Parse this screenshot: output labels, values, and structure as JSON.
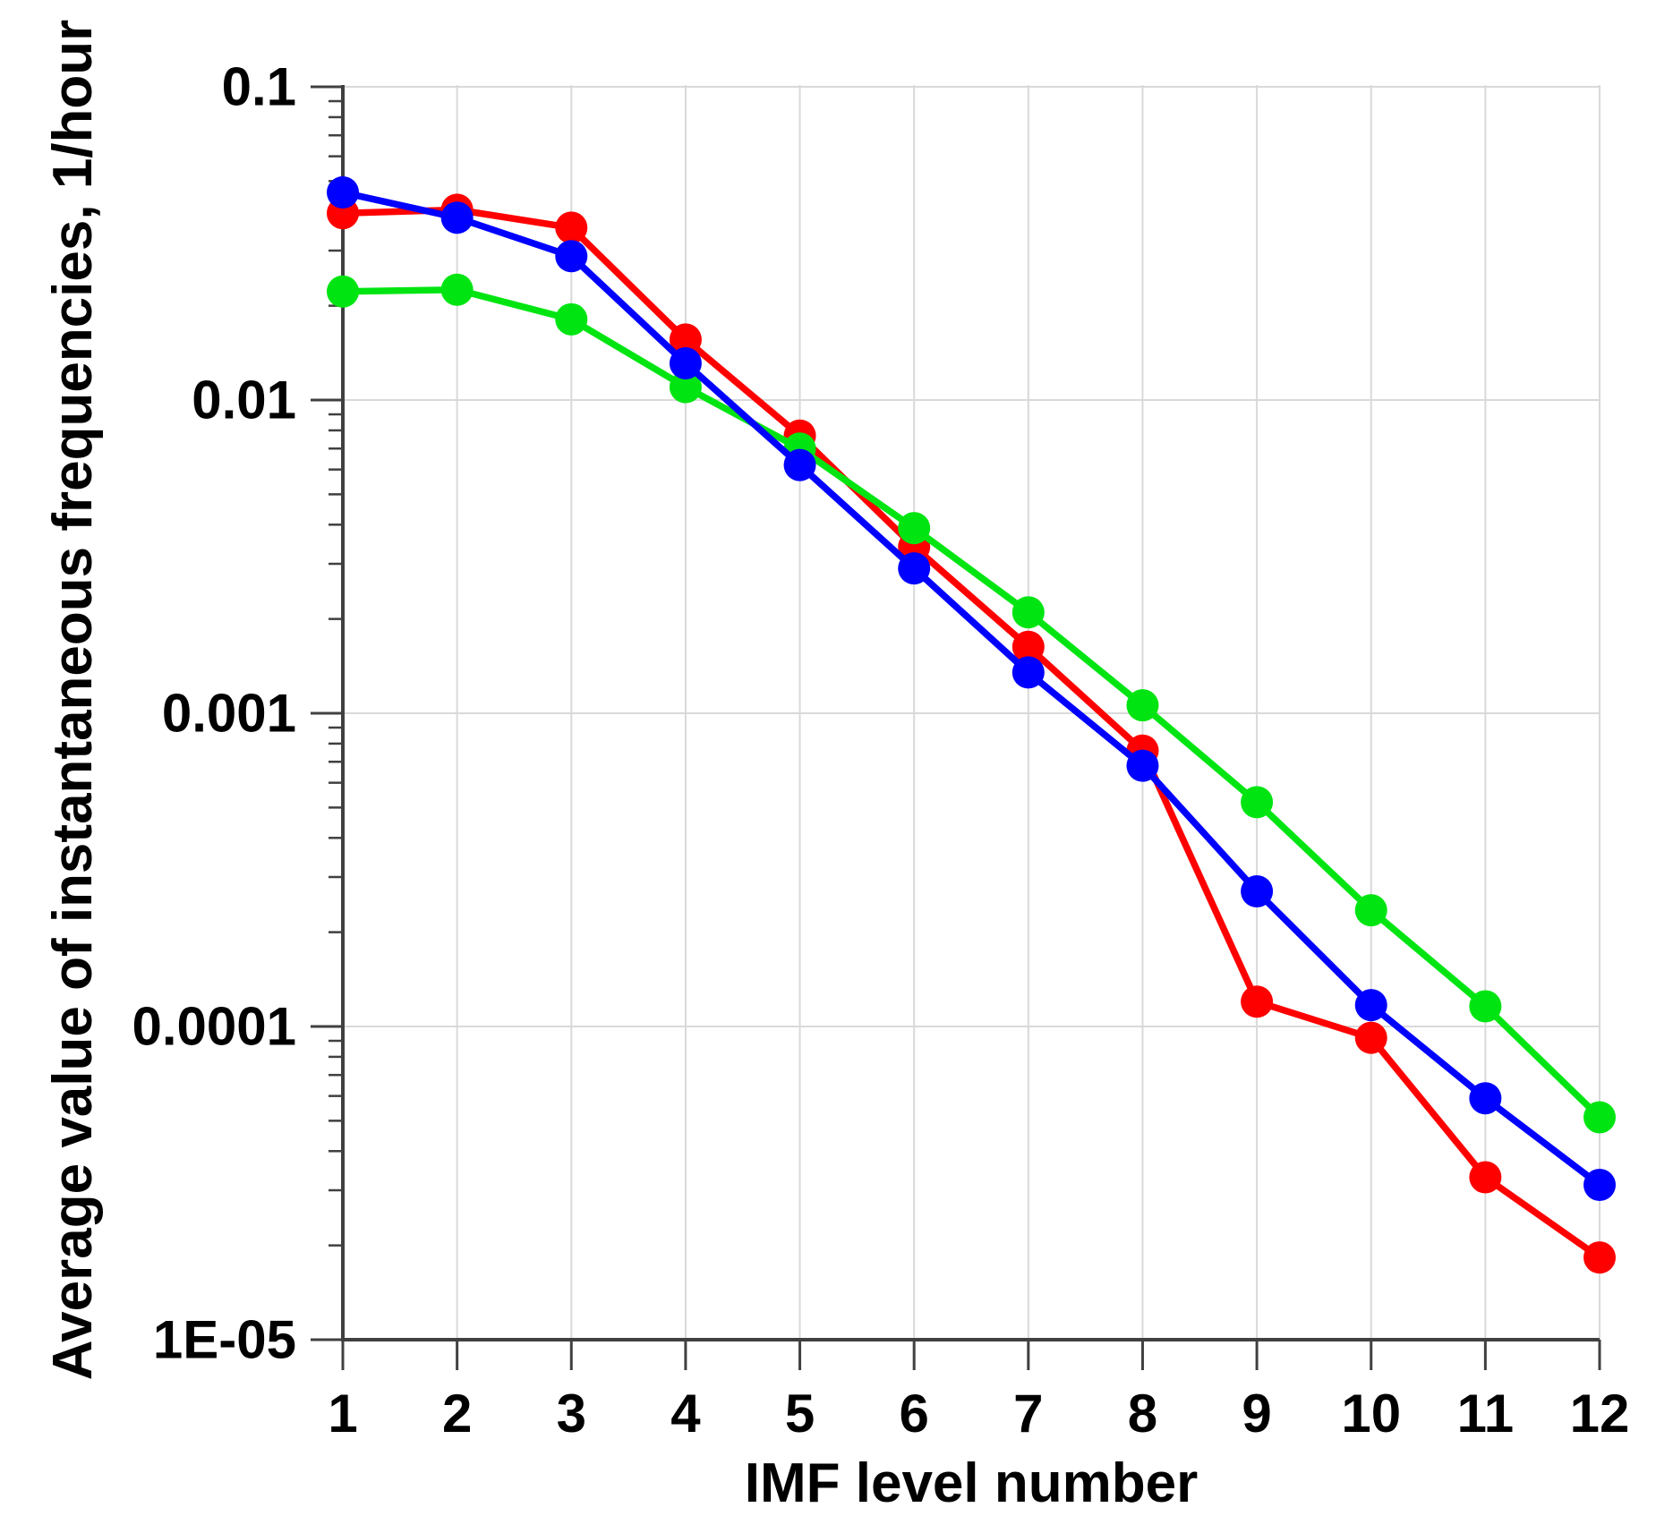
{
  "chart_data": {
    "type": "line",
    "title": "",
    "xlabel": "IMF level number",
    "ylabel": "Average value of instantaneous frequencies, 1/hour",
    "x": [
      1,
      2,
      3,
      4,
      5,
      6,
      7,
      8,
      9,
      10,
      11,
      12
    ],
    "x_tick_labels": [
      "1",
      "2",
      "3",
      "4",
      "5",
      "6",
      "7",
      "8",
      "9",
      "10",
      "11",
      "12"
    ],
    "xlim": [
      1,
      12
    ],
    "y_scale": "log",
    "ylim": [
      1e-05,
      0.1
    ],
    "y_tick_values": [
      0.1,
      0.01,
      0.001,
      0.0001,
      1e-05
    ],
    "y_tick_labels": [
      "0.1",
      "0.01",
      "0.001",
      "0.0001",
      "1E-05"
    ],
    "grid": true,
    "legend": "none",
    "series": [
      {
        "name": "red-series",
        "color": "#FF0000",
        "values": [
          0.0395,
          0.0405,
          0.0355,
          0.0156,
          0.0077,
          0.0034,
          0.00163,
          0.00076,
          0.00012,
          9.2e-05,
          3.3e-05,
          1.83e-05
        ]
      },
      {
        "name": "green-series",
        "color": "#00E512",
        "values": [
          0.0222,
          0.0225,
          0.0181,
          0.011,
          0.007,
          0.0039,
          0.0021,
          0.00106,
          0.00052,
          0.000235,
          0.000116,
          5.13e-05
        ]
      },
      {
        "name": "blue-series",
        "color": "#0000FF",
        "values": [
          0.046,
          0.0382,
          0.0288,
          0.0131,
          0.0062,
          0.0029,
          0.00135,
          0.00068,
          0.00027,
          0.000117,
          5.9e-05,
          3.12e-05
        ]
      }
    ]
  },
  "colors": {
    "background": "#FFFFFF",
    "gridline": "#D9D9D9",
    "axis": "#404040",
    "text": "#000000"
  }
}
